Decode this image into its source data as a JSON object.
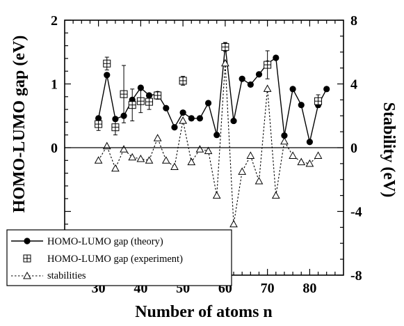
{
  "chart_data": {
    "type": "line",
    "xlabel": "Number of atoms n",
    "ylabel_left": "HOMO-LUMO gap (eV)",
    "ylabel_right": "Stability (eV)",
    "xlim": [
      22,
      88
    ],
    "ylim_left": [
      -2,
      2
    ],
    "ylim_right": [
      -8,
      8
    ],
    "x_ticks": [
      30,
      40,
      50,
      60,
      70,
      80
    ],
    "y_ticks_left": [
      0,
      1,
      2
    ],
    "y_ticks_right": [
      -8,
      -4,
      0,
      4,
      8
    ],
    "grid": false,
    "legend_position": "bottom-left",
    "series": [
      {
        "name": "HOMO-LUMO gap (theory)",
        "axis": "left",
        "style": "solid-filled-circle",
        "x": [
          30,
          32,
          34,
          36,
          38,
          40,
          42,
          44,
          46,
          48,
          50,
          52,
          54,
          56,
          58,
          60,
          62,
          64,
          66,
          68,
          70,
          72,
          74,
          76,
          78,
          80,
          82,
          84
        ],
        "y": [
          0.46,
          1.14,
          0.45,
          0.5,
          0.75,
          0.94,
          0.82,
          0.84,
          0.62,
          0.32,
          0.55,
          0.46,
          0.46,
          0.7,
          0.2,
          1.6,
          0.42,
          1.08,
          0.99,
          1.15,
          1.32,
          1.41,
          0.19,
          0.92,
          0.67,
          0.09,
          0.67,
          0.92
        ]
      },
      {
        "name": "HOMO-LUMO gap (experiment)",
        "axis": "left",
        "style": "boxed-plus-with-errorbars",
        "x": [
          30,
          32,
          34,
          36,
          38,
          40,
          42,
          44,
          50,
          60,
          70,
          82
        ],
        "y": [
          0.37,
          1.32,
          0.32,
          0.84,
          0.67,
          0.73,
          0.72,
          0.82,
          1.05,
          1.58,
          1.3,
          0.73
        ],
        "err": [
          0.1,
          0.1,
          0.12,
          0.45,
          0.25,
          0.18,
          0.12,
          0.06,
          0.07,
          0.07,
          0.22,
          0.1
        ]
      },
      {
        "name": "stabilities",
        "axis": "right",
        "style": "dotted-open-triangle",
        "x": [
          30,
          32,
          34,
          36,
          38,
          40,
          42,
          44,
          46,
          48,
          50,
          52,
          54,
          56,
          58,
          60,
          62,
          64,
          66,
          68,
          70,
          72,
          74,
          76,
          78,
          80,
          82
        ],
        "y": [
          -0.8,
          0.1,
          -1.3,
          -0.1,
          -0.6,
          -0.7,
          -0.8,
          0.6,
          -0.8,
          -1.2,
          1.7,
          -0.9,
          -0.1,
          -0.2,
          -3.0,
          5.3,
          -4.8,
          -1.5,
          -0.5,
          -2.1,
          3.7,
          -3.0,
          0.4,
          -0.5,
          -0.9,
          -1.0,
          -0.5
        ]
      }
    ]
  }
}
